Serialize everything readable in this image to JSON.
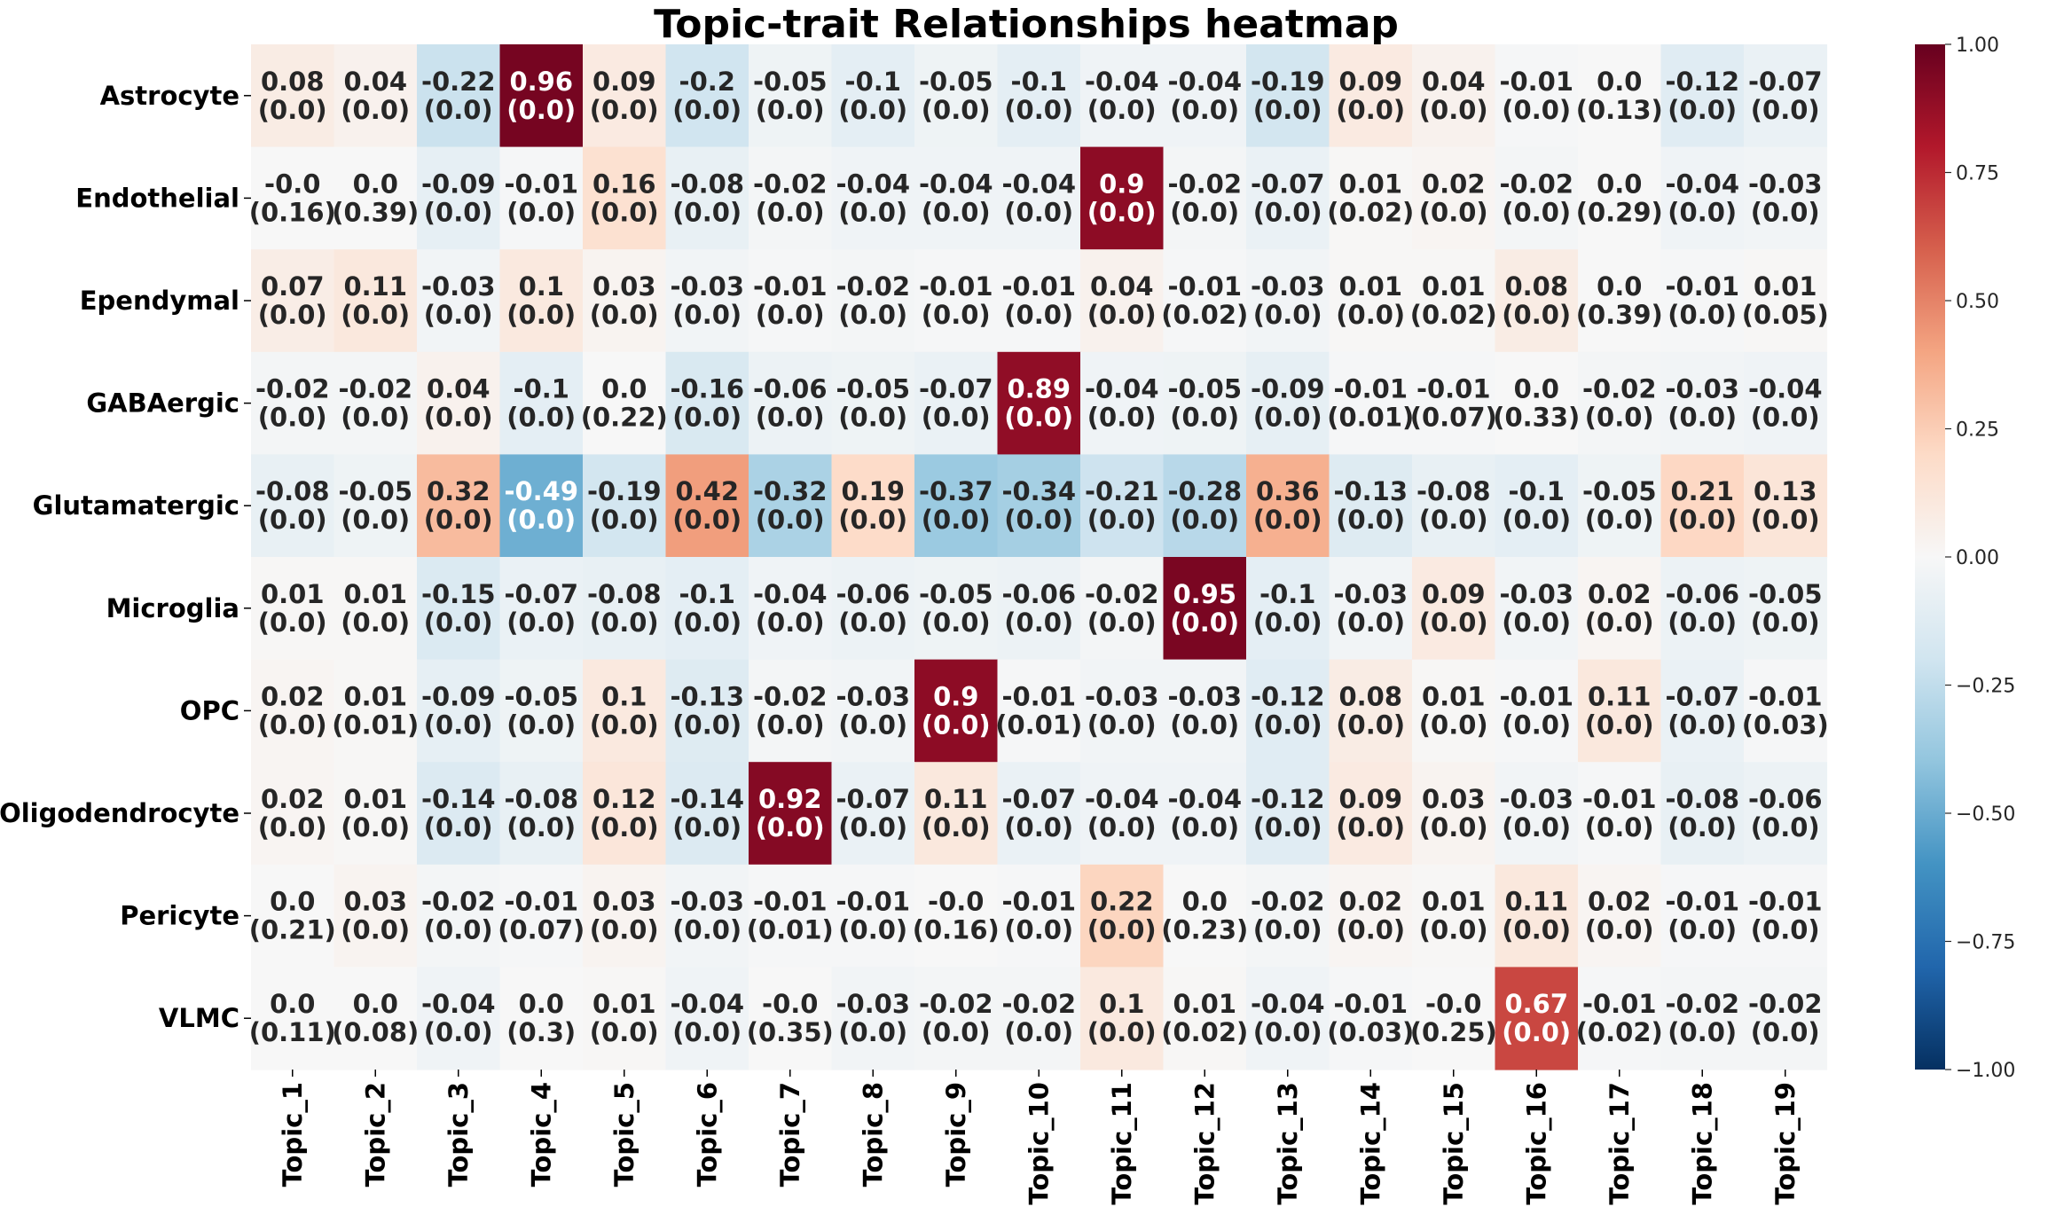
{
  "chart_data": {
    "type": "heatmap",
    "title": "Topic-trait Relationships heatmap",
    "xlabel": "",
    "ylabel": "",
    "rows": [
      "Astrocyte",
      "Endothelial",
      "Ependymal",
      "GABAergic",
      "Glutamatergic",
      "Microglia",
      "OPC",
      "Oligodendrocyte",
      "Pericyte",
      "VLMC"
    ],
    "columns": [
      "Topic_1",
      "Topic_2",
      "Topic_3",
      "Topic_4",
      "Topic_5",
      "Topic_6",
      "Topic_7",
      "Topic_8",
      "Topic_9",
      "Topic_10",
      "Topic_11",
      "Topic_12",
      "Topic_13",
      "Topic_14",
      "Topic_15",
      "Topic_16",
      "Topic_17",
      "Topic_18",
      "Topic_19"
    ],
    "values": [
      [
        "0.08",
        "0.04",
        "-0.22",
        "0.96",
        "0.09",
        "-0.2",
        "-0.05",
        "-0.1",
        "-0.05",
        "-0.1",
        "-0.04",
        "-0.04",
        "-0.19",
        "0.09",
        "0.04",
        "-0.01",
        "0.0",
        "-0.12",
        "-0.07"
      ],
      [
        "-0.0",
        "0.0",
        "-0.09",
        "-0.01",
        "0.16",
        "-0.08",
        "-0.02",
        "-0.04",
        "-0.04",
        "-0.04",
        "0.9",
        "-0.02",
        "-0.07",
        "0.01",
        "0.02",
        "-0.02",
        "0.0",
        "-0.04",
        "-0.03"
      ],
      [
        "0.07",
        "0.11",
        "-0.03",
        "0.1",
        "0.03",
        "-0.03",
        "-0.01",
        "-0.02",
        "-0.01",
        "-0.01",
        "0.04",
        "-0.01",
        "-0.03",
        "0.01",
        "0.01",
        "0.08",
        "0.0",
        "-0.01",
        "0.01"
      ],
      [
        "-0.02",
        "-0.02",
        "0.04",
        "-0.1",
        "0.0",
        "-0.16",
        "-0.06",
        "-0.05",
        "-0.07",
        "0.89",
        "-0.04",
        "-0.05",
        "-0.09",
        "-0.01",
        "-0.01",
        "0.0",
        "-0.02",
        "-0.03",
        "-0.04"
      ],
      [
        "-0.08",
        "-0.05",
        "0.32",
        "-0.49",
        "-0.19",
        "0.42",
        "-0.32",
        "0.19",
        "-0.37",
        "-0.34",
        "-0.21",
        "-0.28",
        "0.36",
        "-0.13",
        "-0.08",
        "-0.1",
        "-0.05",
        "0.21",
        "0.13"
      ],
      [
        "0.01",
        "0.01",
        "-0.15",
        "-0.07",
        "-0.08",
        "-0.1",
        "-0.04",
        "-0.06",
        "-0.05",
        "-0.06",
        "-0.02",
        "0.95",
        "-0.1",
        "-0.03",
        "0.09",
        "-0.03",
        "0.02",
        "-0.06",
        "-0.05"
      ],
      [
        "0.02",
        "0.01",
        "-0.09",
        "-0.05",
        "0.1",
        "-0.13",
        "-0.02",
        "-0.03",
        "0.9",
        "-0.01",
        "-0.03",
        "-0.03",
        "-0.12",
        "0.08",
        "0.01",
        "-0.01",
        "0.11",
        "-0.07",
        "-0.01"
      ],
      [
        "0.02",
        "0.01",
        "-0.14",
        "-0.08",
        "0.12",
        "-0.14",
        "0.92",
        "-0.07",
        "0.11",
        "-0.07",
        "-0.04",
        "-0.04",
        "-0.12",
        "0.09",
        "0.03",
        "-0.03",
        "-0.01",
        "-0.08",
        "-0.06"
      ],
      [
        "0.0",
        "0.03",
        "-0.02",
        "-0.01",
        "0.03",
        "-0.03",
        "-0.01",
        "-0.01",
        "-0.0",
        "-0.01",
        "0.22",
        "0.0",
        "-0.02",
        "0.02",
        "0.01",
        "0.11",
        "0.02",
        "-0.01",
        "-0.01"
      ],
      [
        "0.0",
        "0.0",
        "-0.04",
        "0.0",
        "0.01",
        "-0.04",
        "-0.0",
        "-0.03",
        "-0.02",
        "-0.02",
        "0.1",
        "0.01",
        "-0.04",
        "-0.01",
        "-0.0",
        "0.67",
        "-0.01",
        "-0.02",
        "-0.02"
      ]
    ],
    "pvalues": [
      [
        "0.0",
        "0.0",
        "0.0",
        "0.0",
        "0.0",
        "0.0",
        "0.0",
        "0.0",
        "0.0",
        "0.0",
        "0.0",
        "0.0",
        "0.0",
        "0.0",
        "0.0",
        "0.0",
        "0.13",
        "0.0",
        "0.0"
      ],
      [
        "0.16",
        "0.39",
        "0.0",
        "0.0",
        "0.0",
        "0.0",
        "0.0",
        "0.0",
        "0.0",
        "0.0",
        "0.0",
        "0.0",
        "0.0",
        "0.02",
        "0.0",
        "0.0",
        "0.29",
        "0.0",
        "0.0"
      ],
      [
        "0.0",
        "0.0",
        "0.0",
        "0.0",
        "0.0",
        "0.0",
        "0.0",
        "0.0",
        "0.0",
        "0.0",
        "0.0",
        "0.02",
        "0.0",
        "0.0",
        "0.02",
        "0.0",
        "0.39",
        "0.0",
        "0.05"
      ],
      [
        "0.0",
        "0.0",
        "0.0",
        "0.0",
        "0.22",
        "0.0",
        "0.0",
        "0.0",
        "0.0",
        "0.0",
        "0.0",
        "0.0",
        "0.0",
        "0.01",
        "0.07",
        "0.33",
        "0.0",
        "0.0",
        "0.0"
      ],
      [
        "0.0",
        "0.0",
        "0.0",
        "0.0",
        "0.0",
        "0.0",
        "0.0",
        "0.0",
        "0.0",
        "0.0",
        "0.0",
        "0.0",
        "0.0",
        "0.0",
        "0.0",
        "0.0",
        "0.0",
        "0.0",
        "0.0"
      ],
      [
        "0.0",
        "0.0",
        "0.0",
        "0.0",
        "0.0",
        "0.0",
        "0.0",
        "0.0",
        "0.0",
        "0.0",
        "0.0",
        "0.0",
        "0.0",
        "0.0",
        "0.0",
        "0.0",
        "0.0",
        "0.0",
        "0.0"
      ],
      [
        "0.0",
        "0.01",
        "0.0",
        "0.0",
        "0.0",
        "0.0",
        "0.0",
        "0.0",
        "0.0",
        "0.01",
        "0.0",
        "0.0",
        "0.0",
        "0.0",
        "0.0",
        "0.0",
        "0.0",
        "0.0",
        "0.03"
      ],
      [
        "0.0",
        "0.0",
        "0.0",
        "0.0",
        "0.0",
        "0.0",
        "0.0",
        "0.0",
        "0.0",
        "0.0",
        "0.0",
        "0.0",
        "0.0",
        "0.0",
        "0.0",
        "0.0",
        "0.0",
        "0.0",
        "0.0"
      ],
      [
        "0.21",
        "0.0",
        "0.0",
        "0.07",
        "0.0",
        "0.0",
        "0.01",
        "0.0",
        "0.16",
        "0.0",
        "0.0",
        "0.23",
        "0.0",
        "0.0",
        "0.0",
        "0.0",
        "0.0",
        "0.0",
        "0.0"
      ],
      [
        "0.11",
        "0.08",
        "0.0",
        "0.3",
        "0.0",
        "0.0",
        "0.35",
        "0.0",
        "0.0",
        "0.0",
        "0.0",
        "0.02",
        "0.0",
        "0.03",
        "0.25",
        "0.0",
        "0.02",
        "0.0",
        "0.0"
      ]
    ],
    "colormap": "RdBu_r",
    "vmin": -1.0,
    "vmax": 1.0,
    "colorbar": {
      "ticks": [
        1.0,
        0.75,
        0.5,
        0.25,
        0.0,
        -0.25,
        -0.5,
        -0.75,
        -1.0
      ],
      "tick_labels": [
        "1.00",
        "0.75",
        "0.50",
        "0.25",
        "0.00",
        "−0.25",
        "−0.50",
        "−0.75",
        "−1.00"
      ]
    }
  }
}
